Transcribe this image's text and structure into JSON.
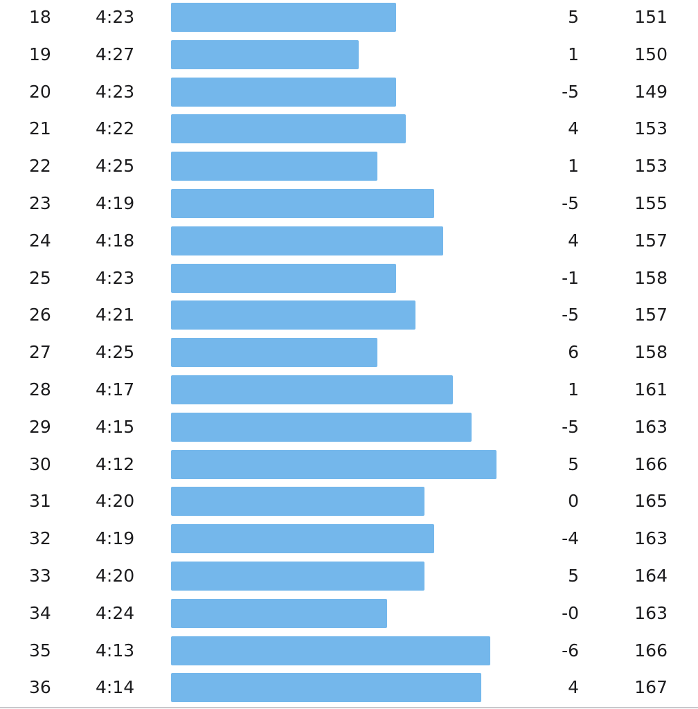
{
  "accent_color": "#74b7eb",
  "pace_scale": {
    "max_seconds_per_km": 280,
    "min_seconds_per_km": 248
  },
  "splits": [
    {
      "km": "18",
      "pace": "4:23",
      "elevation": "5",
      "heart_rate": "151"
    },
    {
      "km": "19",
      "pace": "4:27",
      "elevation": "1",
      "heart_rate": "150"
    },
    {
      "km": "20",
      "pace": "4:23",
      "elevation": "-5",
      "heart_rate": "149"
    },
    {
      "km": "21",
      "pace": "4:22",
      "elevation": "4",
      "heart_rate": "153"
    },
    {
      "km": "22",
      "pace": "4:25",
      "elevation": "1",
      "heart_rate": "153"
    },
    {
      "km": "23",
      "pace": "4:19",
      "elevation": "-5",
      "heart_rate": "155"
    },
    {
      "km": "24",
      "pace": "4:18",
      "elevation": "4",
      "heart_rate": "157"
    },
    {
      "km": "25",
      "pace": "4:23",
      "elevation": "-1",
      "heart_rate": "158"
    },
    {
      "km": "26",
      "pace": "4:21",
      "elevation": "-5",
      "heart_rate": "157"
    },
    {
      "km": "27",
      "pace": "4:25",
      "elevation": "6",
      "heart_rate": "158"
    },
    {
      "km": "28",
      "pace": "4:17",
      "elevation": "1",
      "heart_rate": "161"
    },
    {
      "km": "29",
      "pace": "4:15",
      "elevation": "-5",
      "heart_rate": "163"
    },
    {
      "km": "30",
      "pace": "4:12",
      "elevation": "5",
      "heart_rate": "166"
    },
    {
      "km": "31",
      "pace": "4:20",
      "elevation": "0",
      "heart_rate": "165"
    },
    {
      "km": "32",
      "pace": "4:19",
      "elevation": "-4",
      "heart_rate": "163"
    },
    {
      "km": "33",
      "pace": "4:20",
      "elevation": "5",
      "heart_rate": "164"
    },
    {
      "km": "34",
      "pace": "4:24",
      "elevation": "-0",
      "heart_rate": "163"
    },
    {
      "km": "35",
      "pace": "4:13",
      "elevation": "-6",
      "heart_rate": "166"
    },
    {
      "km": "36",
      "pace": "4:14",
      "elevation": "4",
      "heart_rate": "167"
    }
  ]
}
